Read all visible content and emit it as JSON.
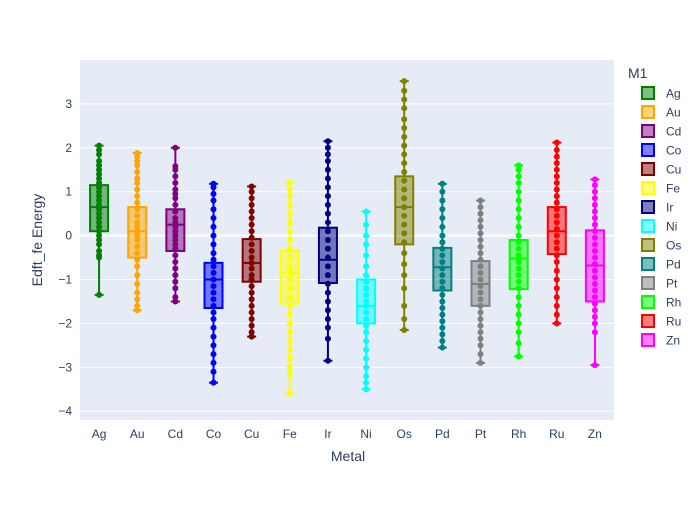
{
  "chart_data": {
    "type": "box",
    "title": "",
    "xlabel": "Metal",
    "ylabel": "Edft_fe Energy",
    "ylim": [
      -4.2,
      4.0
    ],
    "yticks": [
      -4,
      -3,
      -2,
      -1,
      0,
      1,
      2,
      3
    ],
    "grid": true,
    "legend_title": "M1",
    "legend_position": "right",
    "categories": [
      "Ag",
      "Au",
      "Cd",
      "Co",
      "Cu",
      "Fe",
      "Ir",
      "Ni",
      "Os",
      "Pd",
      "Pt",
      "Rh",
      "Ru",
      "Zn"
    ],
    "series": [
      {
        "name": "Ag",
        "color": "#008000",
        "min": -1.35,
        "q1": 0.1,
        "median": 0.65,
        "q3": 1.15,
        "max": 2.05,
        "points": [
          2.05,
          1.95,
          1.85,
          1.7,
          1.6,
          1.5,
          1.4,
          1.3,
          1.2,
          1.1,
          1.0,
          0.9,
          0.8,
          0.7,
          0.6,
          0.5,
          0.4,
          0.3,
          0.2,
          0.1,
          0.0,
          -0.1,
          -0.2,
          -0.35,
          -0.45,
          -0.5,
          -1.35
        ]
      },
      {
        "name": "Au",
        "color": "#FFA500",
        "min": -1.7,
        "q1": -0.5,
        "median": 0.1,
        "q3": 0.65,
        "max": 1.88,
        "points": [
          1.88,
          1.8,
          1.7,
          1.6,
          1.45,
          1.3,
          1.2,
          1.05,
          0.9,
          0.75,
          0.6,
          0.45,
          0.3,
          0.2,
          0.1,
          0.0,
          -0.1,
          -0.25,
          -0.4,
          -0.55,
          -0.7,
          -0.9,
          -1.1,
          -1.3,
          -1.45,
          -1.6,
          -1.7
        ]
      },
      {
        "name": "Cd",
        "color": "#800080",
        "min": -1.5,
        "q1": -0.35,
        "median": 0.25,
        "q3": 0.6,
        "max": 2.0,
        "points": [
          2.0,
          1.58,
          1.5,
          1.35,
          1.2,
          1.05,
          0.95,
          0.85,
          0.7,
          0.55,
          0.4,
          0.3,
          0.2,
          0.1,
          0.0,
          -0.1,
          -0.2,
          -0.3,
          -0.45,
          -0.6,
          -0.75,
          -0.9,
          -1.05,
          -1.2,
          -1.4,
          -1.5
        ]
      },
      {
        "name": "Co",
        "color": "#0000FF",
        "min": -3.35,
        "q1": -1.65,
        "median": -1.0,
        "q3": -0.62,
        "max": 1.18,
        "points": [
          1.18,
          1.1,
          0.95,
          0.8,
          0.6,
          0.4,
          0.2,
          0.0,
          -0.2,
          -0.4,
          -0.55,
          -0.7,
          -0.85,
          -1.0,
          -1.15,
          -1.3,
          -1.45,
          -1.6,
          -1.75,
          -1.9,
          -2.1,
          -2.3,
          -2.5,
          -2.7,
          -2.9,
          -3.1,
          -3.35
        ]
      },
      {
        "name": "Cu",
        "color": "#800000",
        "min": -2.3,
        "q1": -1.05,
        "median": -0.62,
        "q3": -0.08,
        "max": 1.12,
        "points": [
          1.12,
          1.0,
          0.85,
          0.7,
          0.55,
          0.4,
          0.25,
          0.1,
          -0.05,
          -0.2,
          -0.35,
          -0.5,
          -0.62,
          -0.75,
          -0.9,
          -1.0,
          -1.15,
          -1.3,
          -1.45,
          -1.6,
          -1.75,
          -1.9,
          -2.05,
          -2.2,
          -2.3
        ]
      },
      {
        "name": "Fe",
        "color": "#FFFF00",
        "min": -3.6,
        "q1": -1.55,
        "median": -0.85,
        "q3": -0.35,
        "max": 1.2,
        "points": [
          1.2,
          1.05,
          0.9,
          0.7,
          0.5,
          0.3,
          0.1,
          -0.1,
          -0.3,
          -0.5,
          -0.7,
          -0.85,
          -1.0,
          -1.2,
          -1.4,
          -1.6,
          -1.8,
          -2.0,
          -2.2,
          -2.4,
          -2.6,
          -2.8,
          -3.0,
          -3.15,
          -3.6
        ]
      },
      {
        "name": "Ir",
        "color": "#000080",
        "min": -2.85,
        "q1": -1.08,
        "median": -0.55,
        "q3": 0.18,
        "max": 2.15,
        "points": [
          2.15,
          2.0,
          1.85,
          1.7,
          1.5,
          1.3,
          1.1,
          0.9,
          0.7,
          0.5,
          0.3,
          0.1,
          -0.1,
          -0.3,
          -0.5,
          -0.7,
          -0.9,
          -1.1,
          -1.3,
          -1.5,
          -1.7,
          -1.9,
          -2.1,
          -2.35,
          -2.85
        ]
      },
      {
        "name": "Ni",
        "color": "#00FFFF",
        "min": -3.5,
        "q1": -2.0,
        "median": -1.6,
        "q3": -1.0,
        "max": 0.55,
        "points": [
          0.55,
          0.25,
          0.0,
          -0.2,
          -0.45,
          -0.7,
          -0.9,
          -1.05,
          -1.2,
          -1.35,
          -1.5,
          -1.6,
          -1.75,
          -1.9,
          -2.05,
          -2.2,
          -2.4,
          -2.6,
          -2.8,
          -3.0,
          -3.2,
          -3.35,
          -3.5
        ]
      },
      {
        "name": "Os",
        "color": "#808000",
        "min": -2.15,
        "q1": -0.2,
        "median": 0.65,
        "q3": 1.35,
        "max": 3.52,
        "points": [
          3.52,
          3.3,
          3.1,
          2.9,
          2.65,
          2.45,
          2.25,
          2.05,
          1.85,
          1.65,
          1.45,
          1.25,
          1.05,
          0.85,
          0.65,
          0.45,
          0.25,
          0.05,
          -0.15,
          -0.4,
          -0.65,
          -0.9,
          -1.2,
          -1.6,
          -1.9,
          -2.15
        ]
      },
      {
        "name": "Pd",
        "color": "#008080",
        "min": -2.55,
        "q1": -1.25,
        "median": -0.72,
        "q3": -0.28,
        "max": 1.18,
        "points": [
          1.18,
          1.0,
          0.8,
          0.6,
          0.4,
          0.2,
          0.0,
          -0.15,
          -0.3,
          -0.45,
          -0.6,
          -0.75,
          -0.9,
          -1.05,
          -1.2,
          -1.35,
          -1.5,
          -1.65,
          -1.8,
          -1.95,
          -2.1,
          -2.25,
          -2.4,
          -2.55
        ]
      },
      {
        "name": "Pt",
        "color": "#808080",
        "min": -2.9,
        "q1": -1.6,
        "median": -1.1,
        "q3": -0.58,
        "max": 0.8,
        "points": [
          0.8,
          0.65,
          0.5,
          0.35,
          0.2,
          0.05,
          -0.1,
          -0.25,
          -0.4,
          -0.55,
          -0.7,
          -0.85,
          -1.0,
          -1.15,
          -1.3,
          -1.45,
          -1.6,
          -1.75,
          -1.9,
          -2.05,
          -2.2,
          -2.35,
          -2.5,
          -2.7,
          -2.9
        ]
      },
      {
        "name": "Rh",
        "color": "#00FF00",
        "min": -2.75,
        "q1": -1.22,
        "median": -0.52,
        "q3": -0.1,
        "max": 1.6,
        "points": [
          1.6,
          1.5,
          1.35,
          1.2,
          1.0,
          0.8,
          0.6,
          0.4,
          0.2,
          0.0,
          -0.15,
          -0.3,
          -0.45,
          -0.6,
          -0.75,
          -0.9,
          -1.05,
          -1.2,
          -1.4,
          -1.6,
          -1.8,
          -2.0,
          -2.2,
          -2.45,
          -2.75
        ]
      },
      {
        "name": "Ru",
        "color": "#FF0000",
        "min": -2.0,
        "q1": -0.42,
        "median": 0.1,
        "q3": 0.65,
        "max": 2.12,
        "points": [
          2.12,
          1.95,
          1.8,
          1.65,
          1.5,
          1.35,
          1.2,
          1.05,
          0.9,
          0.75,
          0.6,
          0.45,
          0.3,
          0.15,
          0.0,
          -0.15,
          -0.3,
          -0.45,
          -0.6,
          -0.8,
          -1.0,
          -1.2,
          -1.4,
          -1.6,
          -1.8,
          -2.0
        ]
      },
      {
        "name": "Zn",
        "color": "#FF00FF",
        "min": -2.95,
        "q1": -1.5,
        "median": -0.68,
        "q3": 0.12,
        "max": 1.28,
        "points": [
          1.28,
          1.15,
          1.0,
          0.85,
          0.7,
          0.55,
          0.4,
          0.25,
          0.1,
          -0.05,
          -0.2,
          -0.35,
          -0.5,
          -0.65,
          -0.8,
          -0.95,
          -1.1,
          -1.25,
          -1.4,
          -1.55,
          -1.7,
          -1.85,
          -2.0,
          -2.2,
          -2.95
        ]
      }
    ]
  }
}
